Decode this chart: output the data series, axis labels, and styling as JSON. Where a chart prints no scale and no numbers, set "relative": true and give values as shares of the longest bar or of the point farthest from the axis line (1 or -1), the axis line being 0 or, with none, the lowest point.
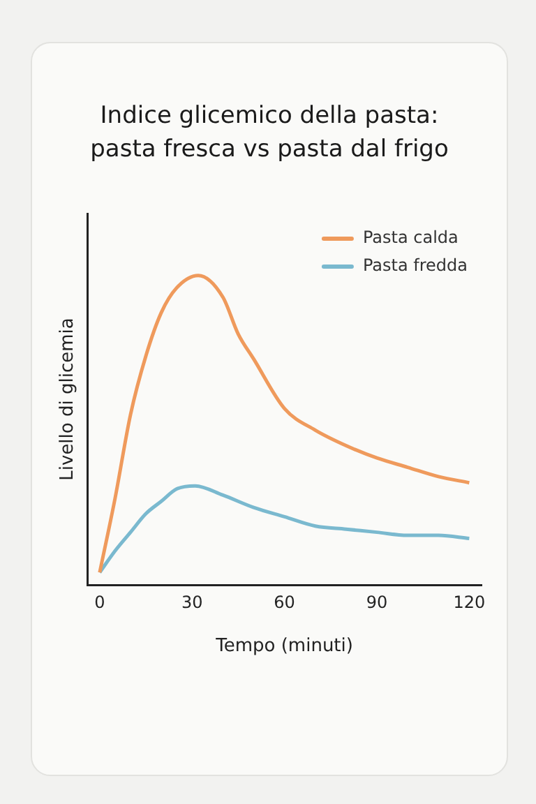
{
  "chart_data": {
    "type": "line",
    "title": "Indice glicemico della pasta:\npasta fresca vs pasta dal frigo",
    "xlabel": "Tempo (minuti)",
    "ylabel": "Livello di glicemia",
    "relative": true,
    "xlim": [
      -4,
      124
    ],
    "xticks": [
      0,
      30,
      60,
      90,
      120
    ],
    "legend": "top right",
    "grid": false,
    "marker": "none",
    "line_style": "solid",
    "series": [
      {
        "name": "Pasta calda",
        "color": "#ef9a5c",
        "x": [
          0,
          5,
          10,
          15,
          20,
          25,
          32,
          40,
          45,
          50,
          60,
          70,
          80,
          90,
          100,
          110,
          120
        ],
        "values": [
          0.04,
          0.28,
          0.55,
          0.74,
          0.88,
          0.96,
          1,
          0.93,
          0.81,
          0.73,
          0.57,
          0.5,
          0.45,
          0.41,
          0.38,
          0.35,
          0.33
        ]
      },
      {
        "name": "Pasta fredda",
        "color": "#7ab9cf",
        "x": [
          0,
          5,
          10,
          15,
          20,
          25,
          31,
          40,
          50,
          60,
          70,
          80,
          90,
          100,
          110,
          120
        ],
        "values": [
          0.04,
          0.11,
          0.17,
          0.23,
          0.27,
          0.31,
          0.32,
          0.29,
          0.25,
          0.22,
          0.19,
          0.18,
          0.17,
          0.16,
          0.16,
          0.15
        ]
      }
    ]
  }
}
